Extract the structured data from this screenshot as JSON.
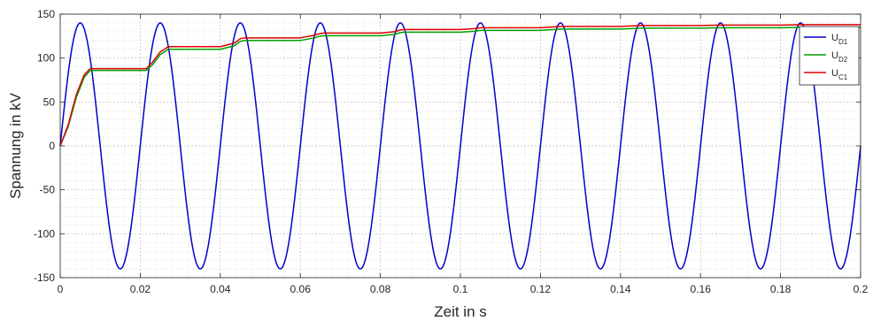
{
  "chart_data": {
    "type": "line",
    "title": "",
    "xlabel": "Zeit in s",
    "ylabel": "Spannung in kV",
    "xlim": [
      0,
      0.2
    ],
    "ylim": [
      -150,
      150
    ],
    "x_ticks": [
      0,
      0.02,
      0.04,
      0.06,
      0.08,
      0.1,
      0.12,
      0.14,
      0.16,
      0.18,
      0.2
    ],
    "x_tick_labels": [
      "0",
      "0.02",
      "0.04",
      "0.06",
      "0.08",
      "0.1",
      "0.12",
      "0.14",
      "0.16",
      "0.18",
      "0.2"
    ],
    "y_ticks": [
      -150,
      -100,
      -50,
      0,
      50,
      100,
      150
    ],
    "y_tick_labels": [
      "-150",
      "-100",
      "-50",
      "0",
      "50",
      "100",
      "150"
    ],
    "grid": true,
    "minor_grid": true,
    "legend_position": "top-right",
    "series": [
      {
        "name": "U_D1",
        "legend_main": "U",
        "legend_sub": "D1",
        "color": "#0000cc",
        "shape": "sine",
        "amplitude": 140,
        "frequency_hz": 50,
        "x": [
          0,
          0.005,
          0.01,
          0.015,
          0.02,
          0.025,
          0.03,
          0.035,
          0.04,
          0.045,
          0.05,
          0.055,
          0.06,
          0.065,
          0.07,
          0.075,
          0.08,
          0.085,
          0.09,
          0.095,
          0.1,
          0.105,
          0.11,
          0.115,
          0.12,
          0.125,
          0.13,
          0.135,
          0.14,
          0.145,
          0.15,
          0.155,
          0.16,
          0.165,
          0.17,
          0.175,
          0.18,
          0.185,
          0.19,
          0.195,
          0.2
        ],
        "y": [
          0,
          140,
          0,
          -140,
          0,
          140,
          0,
          -140,
          0,
          140,
          0,
          -140,
          0,
          140,
          0,
          -140,
          0,
          140,
          0,
          -140,
          0,
          140,
          0,
          -140,
          0,
          140,
          0,
          -140,
          0,
          140,
          0,
          -140,
          0,
          140,
          0,
          -140,
          0,
          140,
          0,
          -140,
          0
        ]
      },
      {
        "name": "U_D2",
        "legend_main": "U",
        "legend_sub": "D2",
        "color": "#00a000",
        "x": [
          0,
          0.002,
          0.004,
          0.006,
          0.0075,
          0.012,
          0.0215,
          0.023,
          0.025,
          0.027,
          0.04,
          0.0435,
          0.045,
          0.046,
          0.06,
          0.0635,
          0.065,
          0.066,
          0.08,
          0.0835,
          0.085,
          0.086,
          0.1,
          0.1035,
          0.105,
          0.12,
          0.1235,
          0.125,
          0.14,
          0.145,
          0.16,
          0.165,
          0.18,
          0.185,
          0.2
        ],
        "y": [
          0,
          22,
          55,
          78,
          86,
          86,
          86,
          92,
          104,
          110,
          110,
          114,
          119,
          120,
          120,
          123,
          125,
          125.5,
          125.5,
          127,
          129,
          129.5,
          129.5,
          130.5,
          131.5,
          131.5,
          132.5,
          133,
          133,
          134,
          134,
          134.5,
          134.5,
          135,
          135
        ]
      },
      {
        "name": "U_C1",
        "legend_main": "U",
        "legend_sub": "C1",
        "color": "#dd0000",
        "x": [
          0,
          0.002,
          0.004,
          0.006,
          0.0075,
          0.012,
          0.0215,
          0.023,
          0.025,
          0.027,
          0.04,
          0.0435,
          0.045,
          0.046,
          0.06,
          0.0635,
          0.065,
          0.066,
          0.08,
          0.0835,
          0.085,
          0.086,
          0.1,
          0.1035,
          0.105,
          0.12,
          0.1235,
          0.125,
          0.14,
          0.145,
          0.16,
          0.165,
          0.18,
          0.185,
          0.2
        ],
        "y": [
          0,
          24,
          58,
          81,
          88,
          88,
          88,
          95,
          107,
          113,
          113,
          117,
          122,
          123,
          123,
          126,
          128,
          128.5,
          128.5,
          130,
          132,
          132.5,
          132.5,
          133.5,
          134.5,
          134.5,
          135.5,
          136,
          136,
          137,
          137,
          137.5,
          137.5,
          138,
          138
        ]
      }
    ]
  }
}
